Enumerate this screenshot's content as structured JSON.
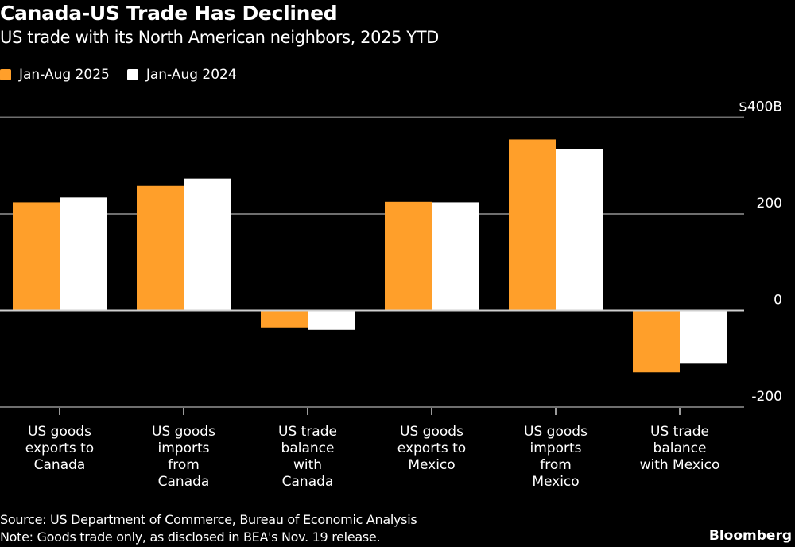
{
  "header": {
    "title": "Canada-US Trade Has Declined",
    "subtitle": "US trade with its North American neighbors, 2025 YTD"
  },
  "footer": {
    "source": "Source: US Department of Commerce, Bureau of Economic Analysis",
    "note": "Note: Goods trade only, as disclosed in BEA's Nov. 19 release.",
    "brand": "Bloomberg"
  },
  "chart_data": {
    "type": "bar",
    "title": "Canada-US Trade Has Declined",
    "subtitle": "US trade with its North American neighbors, 2025 YTD",
    "xlabel": "",
    "ylabel": "",
    "ylim": [
      -200,
      400
    ],
    "yticks": [
      -200,
      0,
      200,
      400
    ],
    "ytick_labels": [
      "-200",
      "0",
      "200",
      "$400B"
    ],
    "grid": true,
    "legend_position": "top-left",
    "categories": [
      [
        "US goods",
        "exports to",
        "Canada"
      ],
      [
        "US goods",
        "imports",
        "from",
        "Canada"
      ],
      [
        "US trade",
        "balance",
        "with",
        "Canada"
      ],
      [
        "US goods",
        "exports to",
        "Mexico"
      ],
      [
        "US goods",
        "imports",
        "from",
        "Mexico"
      ],
      [
        "US trade",
        "balance",
        "with Mexico"
      ]
    ],
    "series": [
      {
        "name": "Jan-Aug 2025",
        "color": "#ff9f2a",
        "values": [
          224,
          258,
          -35,
          225,
          354,
          -128
        ]
      },
      {
        "name": "Jan-Aug 2024",
        "color": "#ffffff",
        "values": [
          234,
          273,
          -40,
          224,
          334,
          -110
        ]
      }
    ]
  }
}
